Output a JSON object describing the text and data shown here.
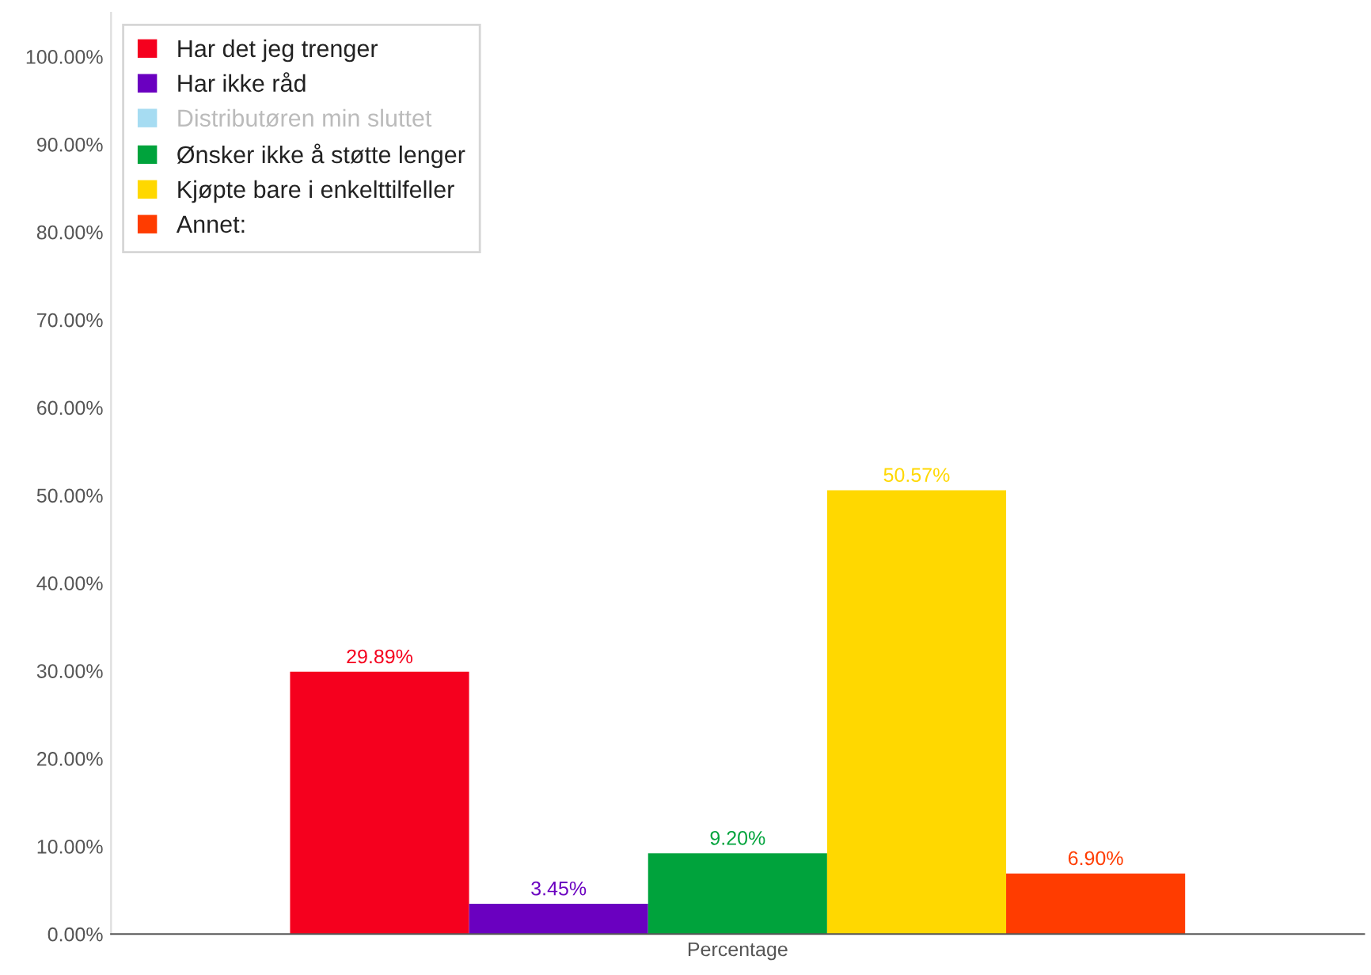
{
  "chart_data": {
    "type": "bar",
    "categories": [
      "Percentage"
    ],
    "series": [
      {
        "name": "Har det jeg trenger",
        "color": "#f5001e",
        "values": [
          29.89
        ],
        "value_labels": [
          "29.89%"
        ]
      },
      {
        "name": "Har ikke råd",
        "color": "#6a00c0",
        "values": [
          3.45
        ],
        "value_labels": [
          "3.45%"
        ]
      },
      {
        "name": "Distributøren min sluttet",
        "color": "#a6dcf2",
        "values": [
          null
        ],
        "value_labels": [
          null
        ]
      },
      {
        "name": "Ønsker ikke å støtte lenger",
        "color": "#00a33c",
        "values": [
          9.2
        ],
        "value_labels": [
          "9.20%"
        ]
      },
      {
        "name": "Kjøpte bare i enkelttilfeller",
        "color": "#ffd800",
        "values": [
          50.57
        ],
        "value_labels": [
          "50.57%"
        ]
      },
      {
        "name": "Annet:",
        "color": "#ff3c00",
        "values": [
          6.9
        ],
        "value_labels": [
          "6.90%"
        ]
      }
    ],
    "ylim": [
      0,
      105
    ],
    "yticks": [
      {
        "value": 0,
        "label": "0.00%"
      },
      {
        "value": 10,
        "label": "10.00%"
      },
      {
        "value": 20,
        "label": "20.00%"
      },
      {
        "value": 30,
        "label": "30.00%"
      },
      {
        "value": 40,
        "label": "40.00%"
      },
      {
        "value": 50,
        "label": "50.00%"
      },
      {
        "value": 60,
        "label": "60.00%"
      },
      {
        "value": 70,
        "label": "70.00%"
      },
      {
        "value": 80,
        "label": "80.00%"
      },
      {
        "value": 90,
        "label": "90.00%"
      },
      {
        "value": 100,
        "label": "100.00%"
      }
    ],
    "legend": "top left",
    "grid": false
  }
}
